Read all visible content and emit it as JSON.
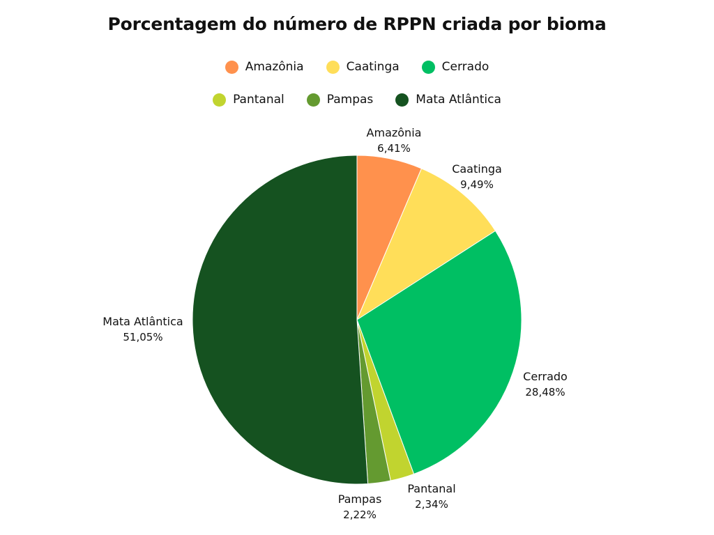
{
  "chart_data": {
    "type": "pie",
    "title": "Porcentagem do número de RPPN criada por bioma",
    "legend_position": "top",
    "slices": [
      {
        "label": "Amazônia",
        "value": 6.41,
        "value_label": "6,41%",
        "color": "#FF914D"
      },
      {
        "label": "Caatinga",
        "value": 9.49,
        "value_label": "9,49%",
        "color": "#FFDE59"
      },
      {
        "label": "Cerrado",
        "value": 28.48,
        "value_label": "28,48%",
        "color": "#00BF63"
      },
      {
        "label": "Pantanal",
        "value": 2.34,
        "value_label": "2,34%",
        "color": "#C1D42F"
      },
      {
        "label": "Pampas",
        "value": 2.22,
        "value_label": "2,22%",
        "color": "#649A30"
      },
      {
        "label": "Mata Atlântica",
        "value": 51.05,
        "value_label": "51,05%",
        "color": "#155220"
      }
    ]
  }
}
